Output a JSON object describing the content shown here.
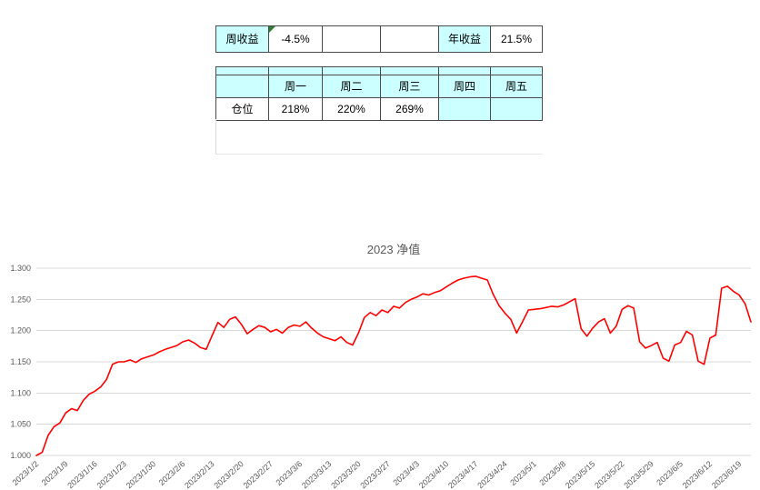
{
  "table": {
    "summary": {
      "weekly_label": "周收益",
      "weekly_value": "-4.5%",
      "annual_label": "年收益",
      "annual_value": "21.5%"
    },
    "header": [
      "",
      "周一",
      "周二",
      "周三",
      "周四",
      "周五"
    ],
    "position_row": {
      "label": "仓位",
      "values": [
        "218%",
        "220%",
        "269%",
        "",
        ""
      ]
    }
  },
  "colors": {
    "cell_fill": "#CCFFFF",
    "grid": "#D9D9D9",
    "axis_text": "#595959",
    "line": "#FF0000",
    "cell_border": "#4a4a4a",
    "indicator_green": "#2E7D32"
  },
  "chart_data": {
    "type": "line",
    "title": "2023 净值",
    "ylim": [
      1.0,
      1.3
    ],
    "ytick_step": 0.05,
    "grid": true,
    "legend": "none",
    "line_color": "#FF0000",
    "tick_every": 5,
    "x_tick_labels": [
      "2023/1/2",
      "2023/1/9",
      "2023/1/16",
      "2023/1/23",
      "2023/1/30",
      "2023/2/6",
      "2023/2/13",
      "2023/2/20",
      "2023/2/27",
      "2023/3/6",
      "2023/3/13",
      "2023/3/20",
      "2023/3/27",
      "2023/4/3",
      "2023/4/10",
      "2023/4/17",
      "2023/4/24",
      "2023/5/1",
      "2023/5/8",
      "2023/5/15",
      "2023/5/22",
      "2023/5/29",
      "2023/6/5",
      "2023/6/12",
      "2023/6/19"
    ],
    "values": [
      1.0,
      1.005,
      1.032,
      1.046,
      1.052,
      1.068,
      1.075,
      1.072,
      1.088,
      1.098,
      1.103,
      1.11,
      1.122,
      1.146,
      1.15,
      1.15,
      1.153,
      1.149,
      1.155,
      1.158,
      1.161,
      1.166,
      1.17,
      1.173,
      1.176,
      1.182,
      1.185,
      1.18,
      1.173,
      1.17,
      1.192,
      1.213,
      1.205,
      1.218,
      1.222,
      1.21,
      1.195,
      1.202,
      1.208,
      1.205,
      1.198,
      1.202,
      1.196,
      1.205,
      1.209,
      1.207,
      1.214,
      1.204,
      1.196,
      1.19,
      1.187,
      1.184,
      1.19,
      1.181,
      1.177,
      1.196,
      1.221,
      1.229,
      1.224,
      1.233,
      1.229,
      1.239,
      1.236,
      1.245,
      1.25,
      1.254,
      1.259,
      1.257,
      1.261,
      1.264,
      1.27,
      1.276,
      1.281,
      1.284,
      1.286,
      1.287,
      1.284,
      1.281,
      1.258,
      1.24,
      1.228,
      1.218,
      1.196,
      1.214,
      1.233,
      1.234,
      1.235,
      1.237,
      1.239,
      1.238,
      1.241,
      1.246,
      1.251,
      1.203,
      1.191,
      1.204,
      1.214,
      1.219,
      1.196,
      1.207,
      1.234,
      1.24,
      1.236,
      1.182,
      1.172,
      1.176,
      1.181,
      1.156,
      1.151,
      1.177,
      1.181,
      1.199,
      1.193,
      1.151,
      1.146,
      1.188,
      1.193,
      1.268,
      1.271,
      1.263,
      1.257,
      1.243,
      1.214
    ]
  }
}
